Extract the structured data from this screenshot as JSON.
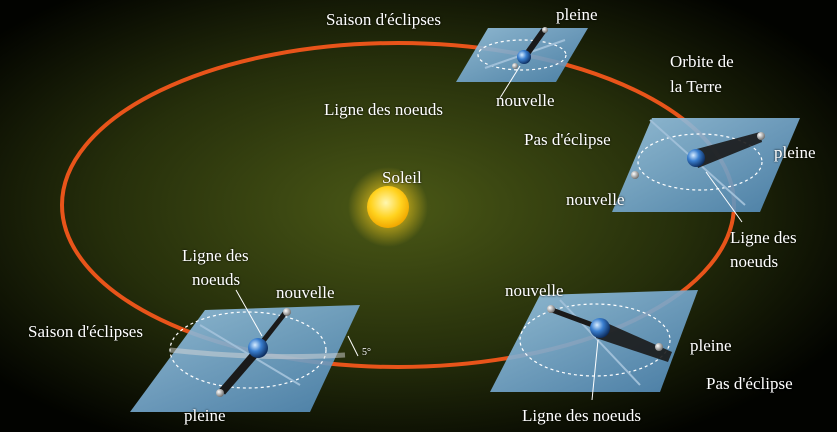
{
  "colors": {
    "background_center": "#3d4a12",
    "background_edge": "#000000",
    "orbit": "#e8541a",
    "sun": "#ffd21e",
    "plane": "#7fb4d8",
    "earth": "#3a7fd0",
    "shadow": "#1a1a1a",
    "text": "#ffffff"
  },
  "labels": {
    "sun": "Soleil",
    "orbit_line1": "Orbite de",
    "orbit_line2": "la Terre",
    "top": {
      "season": "Saison d'éclipses",
      "full": "pleine",
      "new": "nouvelle",
      "nodes": "Ligne des noeuds"
    },
    "right": {
      "step": "Pas d'éclipse",
      "full": "pleine",
      "new": "nouvelle",
      "nodes_line1": "Ligne des",
      "nodes_line2": "noeuds"
    },
    "left": {
      "nodes_line1": "Ligne des",
      "nodes_line2": "noeuds",
      "new": "nouvelle",
      "season": "Saison d'éclipses",
      "full": "pleine",
      "angle": "5°"
    },
    "bottom": {
      "new": "nouvelle",
      "full": "pleine",
      "step": "Pas d'éclipse",
      "nodes": "Ligne des noeuds"
    }
  }
}
